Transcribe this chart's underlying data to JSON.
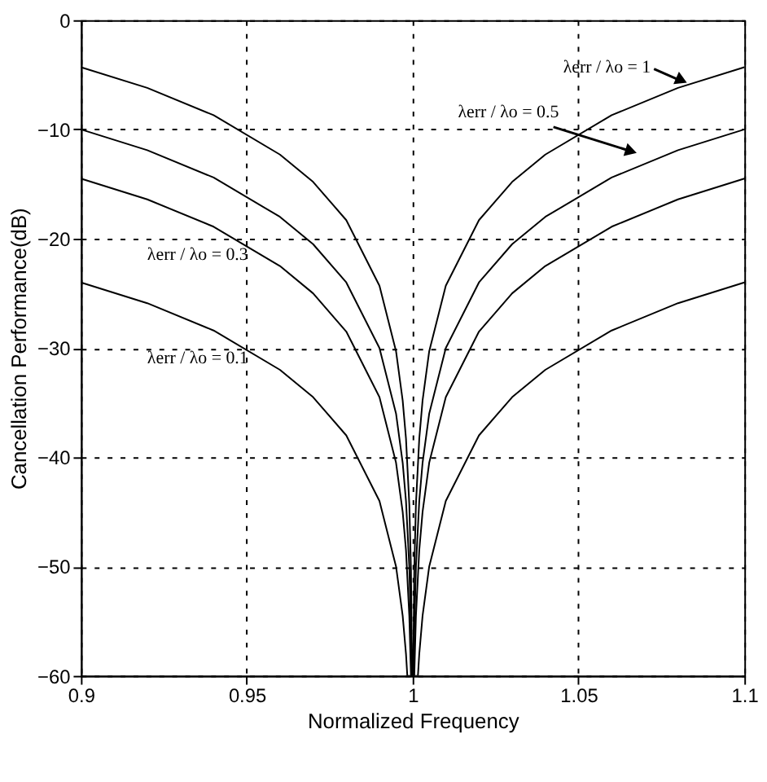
{
  "chart_data": {
    "type": "line",
    "xlabel": "Normalized Frequency",
    "ylabel": "Cancellation Performance(dB)",
    "xlim": [
      0.9,
      1.1
    ],
    "xticks": [
      0.9,
      0.95,
      1,
      1.05,
      1.1
    ],
    "ylim": [
      -60,
      0
    ],
    "yticks": [
      -60,
      -50,
      -40,
      -30,
      -20,
      -10,
      0
    ],
    "grid": true,
    "line_style": "solid",
    "marker": "none",
    "series": [
      {
        "color": "#000000",
        "x": [
          0.9,
          0.92,
          0.94,
          0.96,
          0.97,
          0.98,
          0.99,
          0.995,
          0.997,
          0.998,
          0.999,
          0.9995,
          0.99984,
          1.00016,
          1.0005,
          1.001,
          1.002,
          1.003,
          1.005,
          1.01,
          1.02,
          1.03,
          1.04,
          1.06,
          1.08,
          1.1
        ],
        "values": [
          -4.3,
          -6.2,
          -8.7,
          -12.3,
          -14.8,
          -18.3,
          -24.3,
          -30.3,
          -34.8,
          -38.3,
          -44.3,
          -50.3,
          -60,
          -60,
          -50.3,
          -44.3,
          -38.3,
          -34.8,
          -30.3,
          -24.3,
          -18.3,
          -14.8,
          -12.3,
          -8.7,
          -6.2,
          -4.3
        ]
      },
      {
        "color": "#000000",
        "x": [
          0.9,
          0.92,
          0.94,
          0.96,
          0.97,
          0.98,
          0.99,
          0.995,
          0.997,
          0.998,
          0.999,
          0.9995,
          0.9997,
          1.0003,
          1.0005,
          1.001,
          1.002,
          1.003,
          1.005,
          1.01,
          1.02,
          1.03,
          1.04,
          1.06,
          1.08,
          1.1
        ],
        "values": [
          -10,
          -11.9,
          -14.4,
          -18,
          -20.5,
          -24,
          -30,
          -36,
          -40.5,
          -44,
          -50,
          -56,
          -60,
          -60,
          -56,
          -50,
          -44,
          -40.5,
          -36,
          -30,
          -24,
          -20.5,
          -18,
          -14.4,
          -11.9,
          -10
        ]
      },
      {
        "color": "#000000",
        "x": [
          0.9,
          0.92,
          0.94,
          0.96,
          0.97,
          0.98,
          0.99,
          0.995,
          0.997,
          0.998,
          0.999,
          0.9995,
          1.0005,
          1.001,
          1.002,
          1.003,
          1.005,
          1.01,
          1.02,
          1.03,
          1.04,
          1.06,
          1.08,
          1.1
        ],
        "values": [
          -14.5,
          -16.4,
          -18.9,
          -22.5,
          -25,
          -28.5,
          -34.5,
          -40.5,
          -45,
          -48.5,
          -54.5,
          -60,
          -60,
          -54.5,
          -48.5,
          -45,
          -40.5,
          -34.5,
          -28.5,
          -25,
          -22.5,
          -18.9,
          -16.4,
          -14.5
        ]
      },
      {
        "color": "#000000",
        "x": [
          0.9,
          0.92,
          0.94,
          0.96,
          0.97,
          0.98,
          0.99,
          0.995,
          0.997,
          0.998,
          0.9984,
          1.0016,
          1.002,
          1.003,
          1.005,
          1.01,
          1.02,
          1.03,
          1.04,
          1.06,
          1.08,
          1.1
        ],
        "values": [
          -24,
          -25.9,
          -28.4,
          -32,
          -34.5,
          -38,
          -44,
          -50,
          -54.5,
          -58,
          -60,
          -60,
          -58,
          -54.5,
          -50,
          -44,
          -38,
          -34.5,
          -32,
          -28.4,
          -25.9,
          -24
        ]
      }
    ],
    "annotations": [
      {
        "text": "λerr / λo = 1",
        "x": 1.0835,
        "y": -5.8
      },
      "λerr / λo = 0.5",
      "λerr / λo = 0.3",
      "λerr / λo = 0.1"
    ]
  }
}
